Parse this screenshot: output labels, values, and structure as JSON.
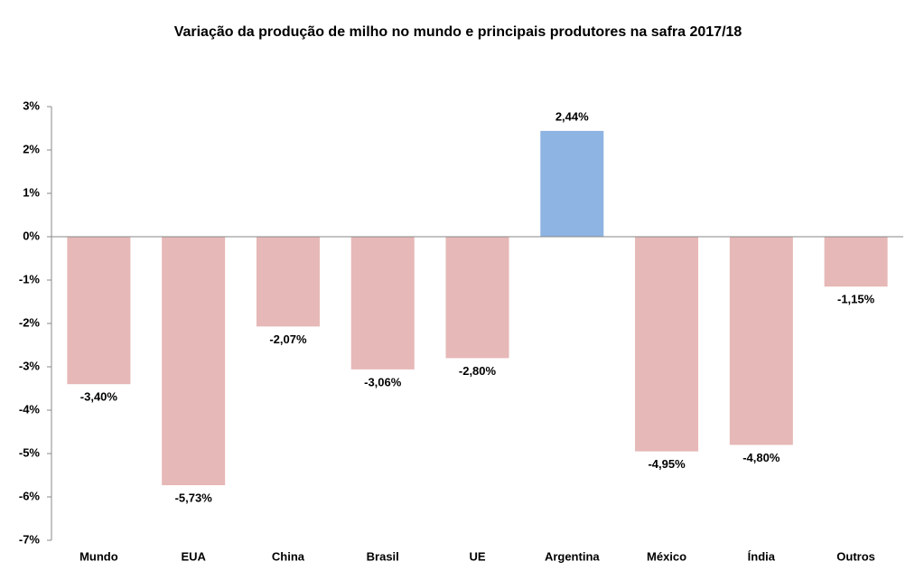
{
  "chart_data": {
    "type": "bar",
    "title": "Variação da produção de milho no mundo e principais produtores na safra 2017/18",
    "categories": [
      "Mundo",
      "EUA",
      "China",
      "Brasil",
      "UE",
      "Argentina",
      "México",
      "Índia",
      "Outros"
    ],
    "values": [
      -3.4,
      -5.73,
      -2.07,
      -3.06,
      -2.8,
      2.44,
      -4.95,
      -4.8,
      -1.15
    ],
    "value_labels": [
      "-3,40%",
      "-5,73%",
      "-2,07%",
      "-3,06%",
      "-2,80%",
      "2,44%",
      "-4,95%",
      "-4,80%",
      "-1,15%"
    ],
    "colors": [
      "#e6b8b7",
      "#e6b8b7",
      "#e6b8b7",
      "#e6b8b7",
      "#e6b8b7",
      "#8db4e2",
      "#e6b8b7",
      "#e6b8b7",
      "#e6b8b7"
    ],
    "ylim": [
      -7,
      3
    ],
    "yticks": [
      {
        "value": -7,
        "label": "-7%"
      },
      {
        "value": -6,
        "label": "-6%"
      },
      {
        "value": -5,
        "label": "-5%"
      },
      {
        "value": -4,
        "label": "-4%"
      },
      {
        "value": -3,
        "label": "-3%"
      },
      {
        "value": -2,
        "label": "-2%"
      },
      {
        "value": -1,
        "label": "-1%"
      },
      {
        "value": 0,
        "label": "0%"
      },
      {
        "value": 1,
        "label": "1%"
      },
      {
        "value": 2,
        "label": "2%"
      },
      {
        "value": 3,
        "label": "3%"
      }
    ],
    "grid": false
  }
}
